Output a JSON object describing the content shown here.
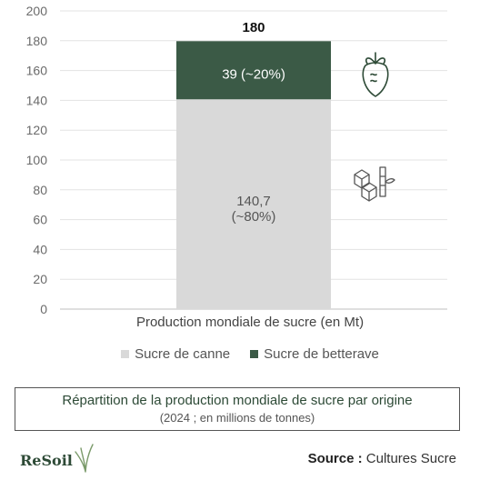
{
  "chart_data": {
    "type": "bar",
    "stacked": true,
    "categories": [
      "Production mondiale de sucre (en Mt)"
    ],
    "series": [
      {
        "name": "Sucre de canne",
        "values": [
          140.7
        ],
        "label": "140,7\n(~80%)",
        "color": "#d9d9d9"
      },
      {
        "name": "Sucre de betterave",
        "values": [
          39
        ],
        "label": "39 (~20%)",
        "color": "#3b5a46"
      }
    ],
    "total_label": "180",
    "xlabel": "Production mondiale de sucre (en Mt)",
    "ylim": [
      0,
      200
    ],
    "yticks": [
      0,
      20,
      40,
      60,
      80,
      100,
      120,
      140,
      160,
      180,
      200
    ],
    "grid": true,
    "legend_position": "bottom"
  },
  "legend": {
    "cane": "Sucre de canne",
    "beet": "Sucre de betterave"
  },
  "caption": {
    "title": "Répartition de la production mondiale de sucre par origine",
    "subtitle": "(2024 ; en millions de tonnes)"
  },
  "logo": {
    "text": "ReSoil"
  },
  "source": {
    "prefix": "Source :",
    "value": "Cultures Sucre"
  },
  "icons": {
    "beet": "sugar-beet-icon",
    "cane": "sugar-cane-cubes-icon"
  }
}
